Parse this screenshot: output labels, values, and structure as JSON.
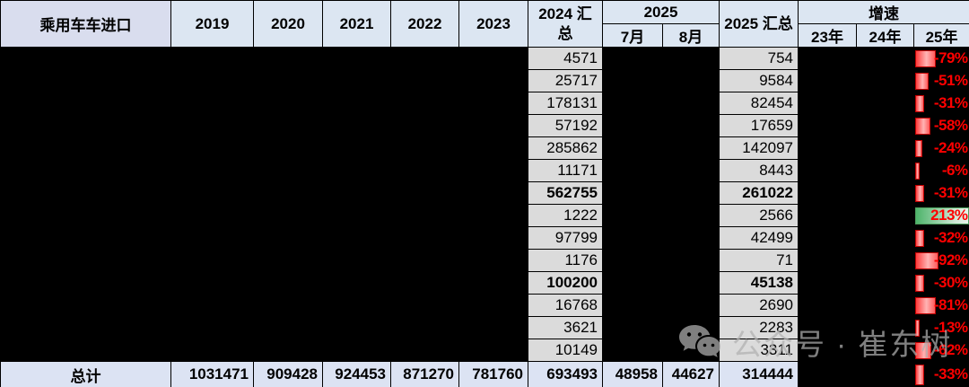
{
  "header": {
    "label": "乘用车车进口",
    "years": [
      "2019",
      "2020",
      "2021",
      "2022",
      "2023"
    ],
    "total_2024": "2024 汇总",
    "group_2025": "2025",
    "months": [
      "7月",
      "8月"
    ],
    "total_2025": "2025 汇总",
    "growth": "增速",
    "growth_years": [
      "23年",
      "24年",
      "25年"
    ]
  },
  "rows": [
    {
      "total_2024": "4571",
      "total_2025": "754",
      "growth_25": "-79%",
      "bold": false
    },
    {
      "total_2024": "25717",
      "total_2025": "9584",
      "growth_25": "-51%",
      "bold": false
    },
    {
      "total_2024": "178131",
      "total_2025": "82454",
      "growth_25": "-31%",
      "bold": false
    },
    {
      "total_2024": "57192",
      "total_2025": "17659",
      "growth_25": "-58%",
      "bold": false
    },
    {
      "total_2024": "285862",
      "total_2025": "142097",
      "growth_25": "-24%",
      "bold": false
    },
    {
      "total_2024": "11171",
      "total_2025": "8443",
      "growth_25": "-6%",
      "bold": false
    },
    {
      "total_2024": "562755",
      "total_2025": "261022",
      "growth_25": "-31%",
      "bold": true
    },
    {
      "total_2024": "1222",
      "total_2025": "2566",
      "growth_25": "213%",
      "bold": false
    },
    {
      "total_2024": "97799",
      "total_2025": "42499",
      "growth_25": "-32%",
      "bold": false
    },
    {
      "total_2024": "1176",
      "total_2025": "71",
      "growth_25": "-92%",
      "bold": false
    },
    {
      "total_2024": "100200",
      "total_2025": "45138",
      "growth_25": "-30%",
      "bold": true
    },
    {
      "total_2024": "16768",
      "total_2025": "2690",
      "growth_25": "-81%",
      "bold": false
    },
    {
      "total_2024": "3621",
      "total_2025": "2283",
      "growth_25": "-13%",
      "bold": false
    },
    {
      "total_2024": "10149",
      "total_2025": "3311",
      "growth_25": "-62%",
      "bold": false
    }
  ],
  "total_row": {
    "label": "总计",
    "values": [
      "1031471",
      "909428",
      "924453",
      "871270",
      "781760",
      "693493",
      "48958",
      "44627",
      "314444"
    ],
    "growth_25": "-33%"
  },
  "watermark": {
    "icon": "wechat-icon",
    "text": "公众号 · 崔东树"
  },
  "colors": {
    "negative_bar": "#ff0000",
    "positive_bar": "#63be7b",
    "growth_text": "#ff0000",
    "header_bg": "#dce6f2",
    "label_header_bg": "#d9ddee",
    "cell_bg": "#dbdbdb",
    "total_row_bg": "#dce3f3",
    "redaction": "#000000"
  },
  "growth_bar_max_pct": 213
}
